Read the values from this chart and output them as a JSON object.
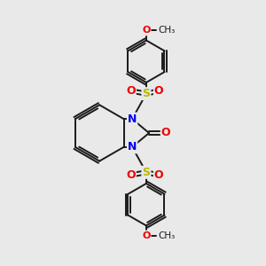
{
  "bg_color": "#e9e9e9",
  "atom_colors": {
    "C": "#1a1a1a",
    "N": "#0000ee",
    "O": "#ee0000",
    "S": "#b8b800"
  },
  "bond_color": "#1a1a1a",
  "lw": 1.4,
  "lw_thick": 1.6
}
